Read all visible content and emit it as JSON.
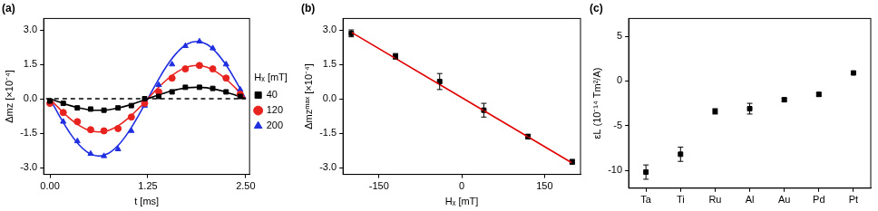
{
  "chart_data": [
    {
      "type": "scatter",
      "title": "(a)",
      "x_label": "t [ms]",
      "y_label": "Δmz [×10⁻⁴]",
      "xlim": [
        -0.08,
        2.55
      ],
      "xticks": [
        {
          "value": 0,
          "label": "0.00"
        },
        {
          "value": 1.25,
          "label": "1.25"
        },
        {
          "value": 2.5,
          "label": "2.50"
        }
      ],
      "ylim": [
        -3.3,
        3.5
      ],
      "yticks": [
        {
          "value": -3,
          "label": "-3.0"
        },
        {
          "value": -1.5,
          "label": "-1.5"
        },
        {
          "value": 0,
          "label": "0.0"
        },
        {
          "value": 1.5,
          "label": "1.5"
        },
        {
          "value": 3,
          "label": "3.0"
        }
      ],
      "grid": false,
      "legend": "right",
      "legend_title": "Hₓ [mT]",
      "series": [
        {
          "name": "40",
          "color": "#000000",
          "marker": "square",
          "x": [
            0,
            0.17,
            0.35,
            0.52,
            0.69,
            0.87,
            1.04,
            1.21,
            1.39,
            1.56,
            1.73,
            1.91,
            2.08,
            2.25,
            2.43
          ],
          "values": [
            -0.1,
            -0.2,
            -0.4,
            -0.45,
            -0.5,
            -0.4,
            -0.3,
            0.0,
            0.1,
            0.3,
            0.5,
            0.5,
            0.45,
            0.3,
            0.1
          ]
        },
        {
          "name": "120",
          "color": "#e8231f",
          "marker": "circle",
          "x": [
            0,
            0.17,
            0.35,
            0.52,
            0.69,
            0.87,
            1.04,
            1.21,
            1.39,
            1.56,
            1.73,
            1.91,
            2.08,
            2.25,
            2.43
          ],
          "values": [
            -0.2,
            -0.6,
            -1.0,
            -1.35,
            -1.4,
            -1.3,
            -0.8,
            -0.2,
            0.3,
            0.9,
            1.3,
            1.45,
            1.3,
            0.9,
            0.2
          ]
        },
        {
          "name": "200",
          "color": "#1f2fe0",
          "marker": "triangle",
          "x": [
            0,
            0.17,
            0.35,
            0.52,
            0.69,
            0.87,
            1.04,
            1.21,
            1.39,
            1.56,
            1.73,
            1.91,
            2.08,
            2.25,
            2.43
          ],
          "values": [
            -0.2,
            -1.0,
            -1.85,
            -2.4,
            -2.5,
            -2.2,
            -1.4,
            -0.3,
            0.6,
            1.5,
            2.3,
            2.5,
            2.2,
            1.5,
            0.4
          ]
        },
        {
          "type": "line",
          "color": "#000000",
          "line_style": "solid",
          "x": [
            0,
            0.125,
            0.25,
            0.375,
            0.5,
            0.625,
            0.75,
            0.875,
            1.0,
            1.125,
            1.25,
            1.375,
            1.5,
            1.625,
            1.75,
            1.875,
            2.0,
            2.125,
            2.25,
            2.375,
            2.5
          ],
          "values": [
            0,
            -0.15,
            -0.29,
            -0.4,
            -0.48,
            -0.5,
            -0.48,
            -0.4,
            -0.29,
            -0.15,
            0,
            0.15,
            0.29,
            0.4,
            0.48,
            0.5,
            0.48,
            0.4,
            0.29,
            0.15,
            0
          ]
        },
        {
          "type": "line",
          "color": "#e8231f",
          "line_style": "solid",
          "x": [
            0,
            0.125,
            0.25,
            0.375,
            0.5,
            0.625,
            0.75,
            0.875,
            1.0,
            1.125,
            1.25,
            1.375,
            1.5,
            1.625,
            1.75,
            1.875,
            2.0,
            2.125,
            2.25,
            2.375,
            2.5
          ],
          "values": [
            0,
            -0.45,
            -0.85,
            -1.17,
            -1.38,
            -1.45,
            -1.38,
            -1.17,
            -0.85,
            -0.45,
            0,
            0.45,
            0.85,
            1.17,
            1.38,
            1.45,
            1.38,
            1.17,
            0.85,
            0.45,
            0
          ]
        },
        {
          "type": "line",
          "color": "#1f2fe0",
          "line_style": "solid",
          "x": [
            0,
            0.125,
            0.25,
            0.375,
            0.5,
            0.625,
            0.75,
            0.875,
            1.0,
            1.125,
            1.25,
            1.375,
            1.5,
            1.625,
            1.75,
            1.875,
            2.0,
            2.125,
            2.25,
            2.375,
            2.5
          ],
          "values": [
            0,
            -0.77,
            -1.47,
            -2.02,
            -2.38,
            -2.5,
            -2.38,
            -2.02,
            -1.47,
            -0.77,
            0,
            0.77,
            1.47,
            2.02,
            2.38,
            2.5,
            2.38,
            2.02,
            1.47,
            0.77,
            0
          ]
        },
        {
          "type": "line",
          "color": "#000000",
          "line_style": "dashed",
          "x": [
            -0.05,
            2.5
          ],
          "values": [
            0,
            0
          ]
        }
      ]
    },
    {
      "type": "scatter",
      "title": "(b)",
      "x_label": "Hₓ [mT]",
      "y_label": "Δmzᵐᵃˣ [×10⁻⁴]",
      "xlim": [
        -215,
        215
      ],
      "xticks": [
        -150,
        0,
        150
      ],
      "ylim": [
        -3.3,
        3.5
      ],
      "yticks": [
        {
          "value": -3,
          "label": "-3.0"
        },
        {
          "value": -1.5,
          "label": "-1.5"
        },
        {
          "value": 0,
          "label": "0.0"
        },
        {
          "value": 1.5,
          "label": "1.5"
        },
        {
          "value": 3,
          "label": "3.0"
        }
      ],
      "grid": false,
      "series": [
        {
          "type": "line",
          "color": "#e00000",
          "line_style": "solid",
          "x": [
            -200,
            200
          ],
          "values": [
            2.9,
            -2.8
          ]
        },
        {
          "color": "#000000",
          "marker": "square",
          "x": [
            -200,
            -120,
            -40,
            40,
            120,
            200
          ],
          "values": [
            2.85,
            1.85,
            0.75,
            -0.5,
            -1.65,
            -2.75
          ],
          "errors": [
            0.15,
            0.12,
            0.35,
            0.3,
            0.1,
            0.1
          ]
        }
      ]
    },
    {
      "type": "scatter",
      "title": "(c)",
      "y_label": "εL (10⁻¹⁴ Tm²/A)",
      "categories": [
        "Ta",
        "Ti",
        "Ru",
        "Al",
        "Au",
        "Pd",
        "Pt"
      ],
      "ylim": [
        -12,
        7
      ],
      "yticks": [
        -10,
        -5,
        0,
        5
      ],
      "grid": false,
      "series": [
        {
          "color": "#000000",
          "marker": "square",
          "values": [
            -10.2,
            -8.2,
            -3.4,
            -3.1,
            -2.1,
            -1.5,
            0.9
          ],
          "errors": [
            0.8,
            0.8,
            0.3,
            0.6,
            0.2,
            0.2,
            0.2
          ]
        }
      ]
    }
  ]
}
